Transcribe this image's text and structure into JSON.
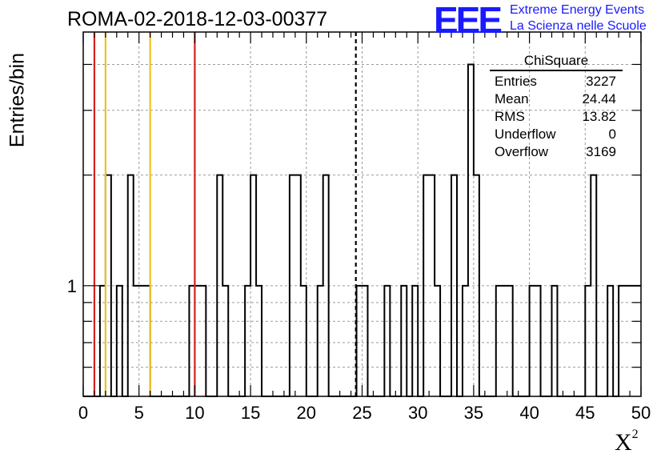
{
  "header": {
    "run_title": "ROMA-02-2018-12-03-00377",
    "logo_mark": "EEE",
    "logo_line1": "Extreme Energy Events",
    "logo_line2": "La Scienza nelle Scuole"
  },
  "stats_box": {
    "title": "ChiSquare",
    "rows": [
      {
        "label": "Entries",
        "value": "3227"
      },
      {
        "label": "Mean",
        "value": "24.44"
      },
      {
        "label": "RMS",
        "value": "13.82"
      },
      {
        "label": "Underflow",
        "value": "0"
      },
      {
        "label": "Overflow",
        "value": "3169"
      }
    ]
  },
  "chart_data": {
    "type": "histogram",
    "title": "ROMA-02-2018-12-03-00377",
    "xlabel": "X",
    "xlabel_superscript": "2",
    "ylabel": "Entries/bin",
    "xlim": [
      0,
      50
    ],
    "ylim": [
      0.5,
      4.9
    ],
    "y_scale": "log",
    "grid": true,
    "bin_width": 0.5,
    "x_ticks": [
      "0",
      "5",
      "10",
      "15",
      "20",
      "25",
      "30",
      "35",
      "40",
      "45",
      "50"
    ],
    "y_tick_labels": [
      {
        "value": 1,
        "label": "1"
      }
    ],
    "bins": [
      {
        "x0": 1.5,
        "x1": 2.0,
        "y": 1
      },
      {
        "x0": 2.0,
        "x1": 2.5,
        "y": 2
      },
      {
        "x0": 3.0,
        "x1": 3.5,
        "y": 1
      },
      {
        "x0": 4.0,
        "x1": 4.5,
        "y": 2
      },
      {
        "x0": 4.5,
        "x1": 6.0,
        "y": 1
      },
      {
        "x0": 9.5,
        "x1": 11.0,
        "y": 1
      },
      {
        "x0": 12.0,
        "x1": 12.5,
        "y": 2
      },
      {
        "x0": 12.5,
        "x1": 13.0,
        "y": 1
      },
      {
        "x0": 14.5,
        "x1": 15.0,
        "y": 1
      },
      {
        "x0": 15.0,
        "x1": 15.5,
        "y": 2
      },
      {
        "x0": 15.5,
        "x1": 16.0,
        "y": 1
      },
      {
        "x0": 18.5,
        "x1": 19.5,
        "y": 2
      },
      {
        "x0": 19.5,
        "x1": 20.0,
        "y": 1
      },
      {
        "x0": 21.0,
        "x1": 21.5,
        "y": 1
      },
      {
        "x0": 21.5,
        "x1": 22.0,
        "y": 2
      },
      {
        "x0": 24.5,
        "x1": 25.5,
        "y": 1
      },
      {
        "x0": 27.0,
        "x1": 27.5,
        "y": 1
      },
      {
        "x0": 28.5,
        "x1": 29.0,
        "y": 1
      },
      {
        "x0": 29.5,
        "x1": 30.0,
        "y": 1
      },
      {
        "x0": 30.5,
        "x1": 31.5,
        "y": 2
      },
      {
        "x0": 31.5,
        "x1": 32.0,
        "y": 1
      },
      {
        "x0": 33.0,
        "x1": 33.5,
        "y": 2
      },
      {
        "x0": 34.0,
        "x1": 34.5,
        "y": 1
      },
      {
        "x0": 34.5,
        "x1": 35.0,
        "y": 4
      },
      {
        "x0": 35.0,
        "x1": 35.5,
        "y": 2
      },
      {
        "x0": 37.0,
        "x1": 38.5,
        "y": 1
      },
      {
        "x0": 40.0,
        "x1": 41.0,
        "y": 1
      },
      {
        "x0": 42.0,
        "x1": 42.5,
        "y": 1
      },
      {
        "x0": 45.0,
        "x1": 45.5,
        "y": 1
      },
      {
        "x0": 45.5,
        "x1": 46.0,
        "y": 2
      },
      {
        "x0": 47.0,
        "x1": 47.5,
        "y": 1
      },
      {
        "x0": 48.0,
        "x1": 50.0,
        "y": 1
      }
    ],
    "vertical_lines": [
      {
        "x": 1.0,
        "color": "#d62020",
        "style": "solid"
      },
      {
        "x": 2.0,
        "color": "#f0c020",
        "style": "solid"
      },
      {
        "x": 6.0,
        "color": "#f0c020",
        "style": "solid"
      },
      {
        "x": 10.0,
        "color": "#d62020",
        "style": "solid"
      },
      {
        "x": 24.44,
        "color": "#000000",
        "style": "dashed"
      }
    ]
  }
}
